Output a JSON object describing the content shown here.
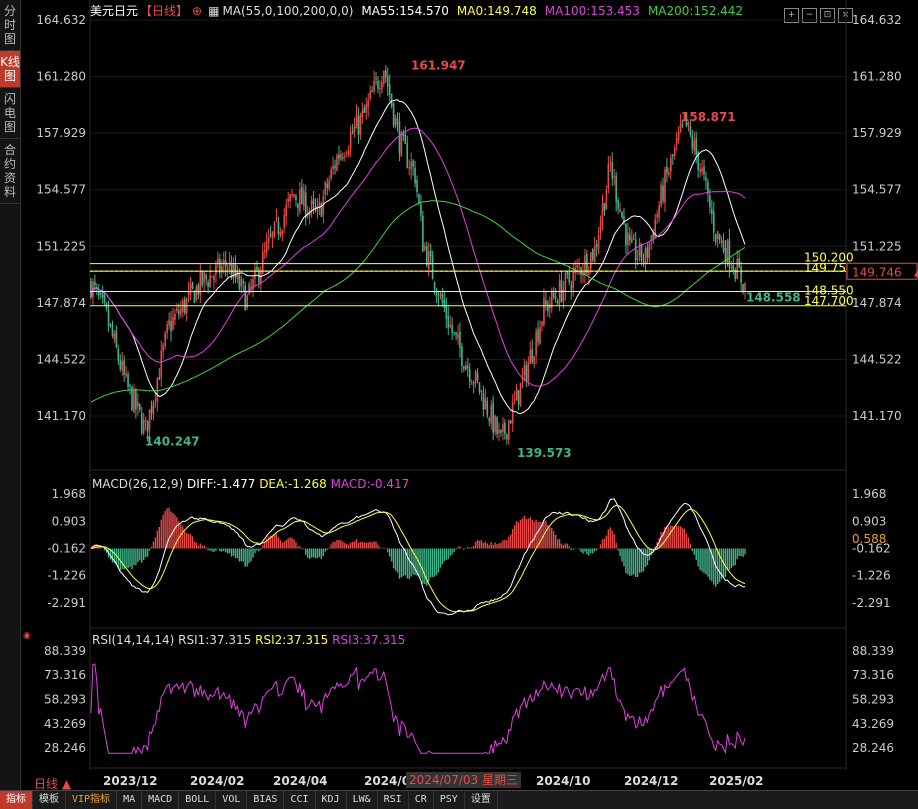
{
  "sidebar": {
    "tabs": [
      {
        "label": "分时图",
        "active": false
      },
      {
        "label": "K线图",
        "active": true
      },
      {
        "label": "闪电图",
        "active": false
      },
      {
        "label": "合约资料",
        "active": false
      }
    ]
  },
  "main_panel": {
    "symbol": "美元日元",
    "period": "【日线】",
    "ma_params": "MA(55,0,100,200,0,0)",
    "ma55": "MA55:154.570",
    "ma0": "MA0:149.748",
    "ma100": "MA100:153.453",
    "ma200": "MA200:152.442",
    "y_ticks": [
      "164.632",
      "161.280",
      "157.929",
      "154.577",
      "151.225",
      "147.874",
      "144.522",
      "141.170"
    ],
    "annotations": {
      "high1": "161.947",
      "high2": "158.871",
      "low1": "140.247",
      "low2": "139.573",
      "last_low": "148.558"
    },
    "hlines": [
      {
        "label": "150.200",
        "value": 150.2,
        "color": "#ffff40"
      },
      {
        "label": "149.750",
        "value": 149.75,
        "color": "#ffff40"
      },
      {
        "label": "148.550",
        "value": 148.55,
        "color": "#ffff40"
      },
      {
        "label": "147.700",
        "value": 147.7,
        "color": "#ffff40"
      }
    ],
    "current_price": "149.746",
    "current_value": 149.746
  },
  "macd_panel": {
    "title": "MACD(26,12,9)",
    "diff": "DIFF:-1.477",
    "dea": "DEA:-1.268",
    "macd": "MACD:-0.417",
    "y_ticks": [
      "1.968",
      "0.903",
      "-0.162",
      "-1.226",
      "-2.291"
    ],
    "current_value": "0.588"
  },
  "rsi_panel": {
    "title": "RSI(14,14,14)",
    "rsi1": "RSI1:37.315",
    "rsi2": "RSI2:37.315",
    "rsi3": "RSI3:37.315",
    "y_ticks": [
      "88.339",
      "73.316",
      "58.293",
      "43.269",
      "28.246"
    ]
  },
  "x_axis": {
    "period_label": "日线 ▲",
    "labels": [
      "2023/12",
      "2024/02",
      "2024/04",
      "2024/0",
      "2024/10",
      "2024/12",
      "2025/02"
    ],
    "cursor_date": "2024/07/03 星期三"
  },
  "bottom_tabs": [
    {
      "label": "指标",
      "active": true
    },
    {
      "label": "模板",
      "active": false
    },
    {
      "label": "VIP指标",
      "active": false,
      "vip": true
    },
    {
      "label": "MA",
      "active": false
    },
    {
      "label": "MACD",
      "active": false
    },
    {
      "label": "BOLL",
      "active": false
    },
    {
      "label": "VOL",
      "active": false
    },
    {
      "label": "BIAS",
      "active": false
    },
    {
      "label": "CCI",
      "active": false
    },
    {
      "label": "KDJ",
      "active": false
    },
    {
      "label": "LW&",
      "active": false
    },
    {
      "label": "RSI",
      "active": false
    },
    {
      "label": "CR",
      "active": false
    },
    {
      "label": "PSY",
      "active": false
    },
    {
      "label": "设置",
      "active": false
    }
  ],
  "colors": {
    "up": "#e84a4a",
    "down": "#3fb58a",
    "ma55": "#ffffff",
    "ma100": "#e040e0",
    "ma200": "#40d040",
    "ma0": "#ffff40",
    "diff": "#ffffff",
    "dea": "#ffff40",
    "rsi": "#e040e0",
    "accent": "#c0392b"
  },
  "window_buttons": [
    "zoom-in",
    "zoom-out",
    "fit",
    "close"
  ]
}
